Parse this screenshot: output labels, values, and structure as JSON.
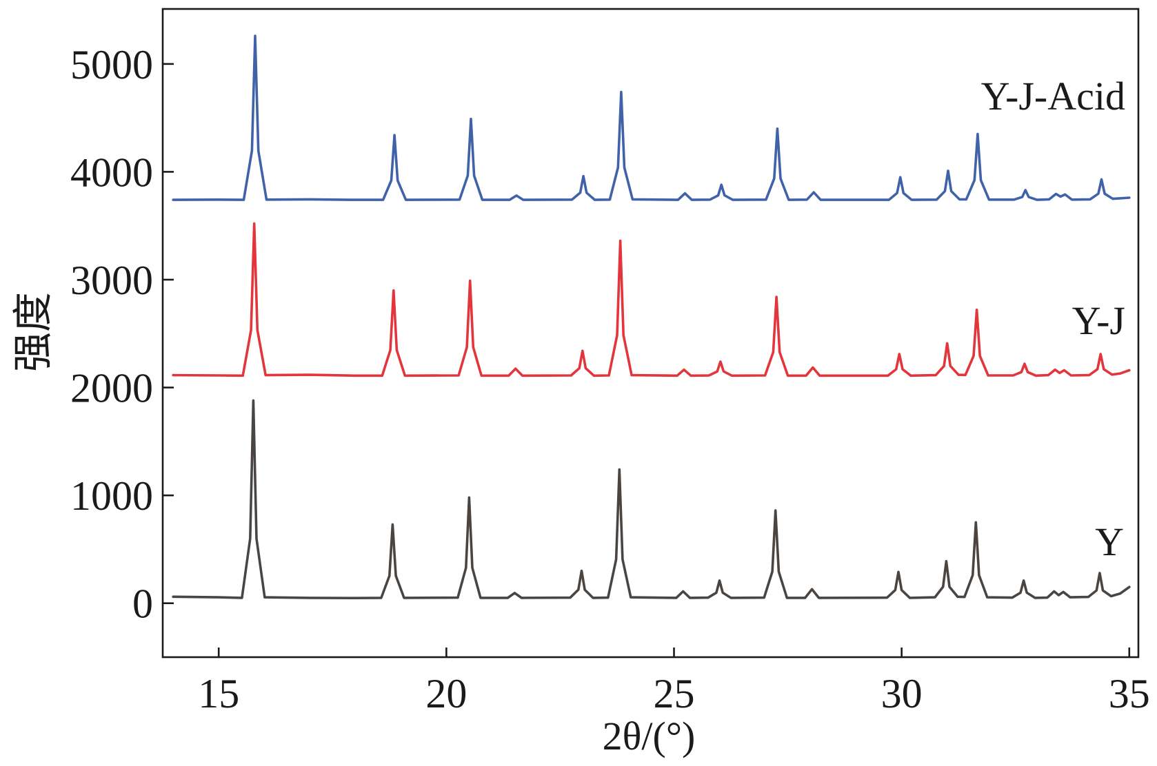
{
  "chart_data": {
    "type": "line",
    "xlabel": "2θ/(°)",
    "ylabel": "强度",
    "xlim": [
      13.77,
      35.2
    ],
    "ylim": [
      -500,
      5510
    ],
    "xticks": [
      15,
      20,
      25,
      30,
      35
    ],
    "yticks": [
      0,
      1000,
      2000,
      3000,
      4000,
      5000
    ],
    "grid": false,
    "legend": "direct labels, right",
    "series": [
      {
        "name": "Y",
        "color": "#4b4542",
        "points": [
          [
            14.0,
            60
          ],
          [
            15.0,
            55
          ],
          [
            15.51,
            50
          ],
          [
            15.69,
            599
          ],
          [
            15.76,
            1880
          ],
          [
            15.83,
            599
          ],
          [
            16.01,
            55
          ],
          [
            17.0,
            50
          ],
          [
            18.0,
            48
          ],
          [
            18.57,
            50
          ],
          [
            18.75,
            254
          ],
          [
            18.82,
            730
          ],
          [
            18.89,
            254
          ],
          [
            19.07,
            50
          ],
          [
            20.25,
            52
          ],
          [
            20.43,
            329
          ],
          [
            20.5,
            980
          ],
          [
            20.57,
            329
          ],
          [
            20.75,
            50
          ],
          [
            21.35,
            50
          ],
          [
            21.5,
            95
          ],
          [
            21.65,
            50
          ],
          [
            22.72,
            52
          ],
          [
            22.9,
            125
          ],
          [
            22.97,
            300
          ],
          [
            23.04,
            125
          ],
          [
            23.22,
            50
          ],
          [
            23.55,
            52
          ],
          [
            23.73,
            407
          ],
          [
            23.8,
            1240
          ],
          [
            23.87,
            407
          ],
          [
            24.05,
            55
          ],
          [
            25.05,
            50
          ],
          [
            25.2,
            110
          ],
          [
            25.35,
            50
          ],
          [
            25.75,
            52
          ],
          [
            25.93,
            98
          ],
          [
            26.0,
            210
          ],
          [
            26.07,
            98
          ],
          [
            26.25,
            50
          ],
          [
            26.98,
            52
          ],
          [
            27.16,
            293
          ],
          [
            27.23,
            860
          ],
          [
            27.3,
            293
          ],
          [
            27.48,
            50
          ],
          [
            27.88,
            50
          ],
          [
            28.03,
            130
          ],
          [
            28.18,
            50
          ],
          [
            29.68,
            52
          ],
          [
            29.86,
            122
          ],
          [
            29.93,
            290
          ],
          [
            30.0,
            122
          ],
          [
            30.18,
            50
          ],
          [
            30.73,
            55
          ],
          [
            30.91,
            152
          ],
          [
            30.98,
            390
          ],
          [
            31.05,
            152
          ],
          [
            31.23,
            60
          ],
          [
            31.38,
            58
          ],
          [
            31.56,
            260
          ],
          [
            31.63,
            750
          ],
          [
            31.7,
            260
          ],
          [
            31.88,
            55
          ],
          [
            32.43,
            52
          ],
          [
            32.61,
            98
          ],
          [
            32.68,
            210
          ],
          [
            32.75,
            98
          ],
          [
            32.93,
            50
          ],
          [
            33.2,
            52
          ],
          [
            33.35,
            110
          ],
          [
            33.45,
            75
          ],
          [
            33.55,
            105
          ],
          [
            33.7,
            55
          ],
          [
            34.1,
            58
          ],
          [
            34.28,
            119
          ],
          [
            34.35,
            280
          ],
          [
            34.42,
            119
          ],
          [
            34.6,
            65
          ],
          [
            34.8,
            90
          ],
          [
            35.0,
            150
          ]
        ]
      },
      {
        "name": "Y-J",
        "color": "#e2363c",
        "points": [
          [
            14.0,
            2115
          ],
          [
            15.0,
            2112
          ],
          [
            15.53,
            2110
          ],
          [
            15.71,
            2533
          ],
          [
            15.78,
            3520
          ],
          [
            15.85,
            2533
          ],
          [
            16.03,
            2115
          ],
          [
            17.0,
            2118
          ],
          [
            18.0,
            2110
          ],
          [
            18.59,
            2110
          ],
          [
            18.77,
            2347
          ],
          [
            18.84,
            2900
          ],
          [
            18.91,
            2347
          ],
          [
            19.09,
            2110
          ],
          [
            20.27,
            2112
          ],
          [
            20.45,
            2374
          ],
          [
            20.52,
            2990
          ],
          [
            20.59,
            2374
          ],
          [
            20.77,
            2110
          ],
          [
            21.37,
            2110
          ],
          [
            21.52,
            2175
          ],
          [
            21.67,
            2110
          ],
          [
            22.74,
            2112
          ],
          [
            22.92,
            2179
          ],
          [
            22.99,
            2340
          ],
          [
            23.06,
            2179
          ],
          [
            23.24,
            2110
          ],
          [
            23.57,
            2112
          ],
          [
            23.75,
            2485
          ],
          [
            23.82,
            3360
          ],
          [
            23.89,
            2485
          ],
          [
            24.07,
            2115
          ],
          [
            25.07,
            2110
          ],
          [
            25.22,
            2165
          ],
          [
            25.37,
            2110
          ],
          [
            25.77,
            2112
          ],
          [
            25.95,
            2149
          ],
          [
            26.02,
            2240
          ],
          [
            26.09,
            2149
          ],
          [
            26.27,
            2110
          ],
          [
            27.0,
            2112
          ],
          [
            27.18,
            2329
          ],
          [
            27.25,
            2840
          ],
          [
            27.32,
            2329
          ],
          [
            27.5,
            2110
          ],
          [
            27.9,
            2110
          ],
          [
            28.05,
            2185
          ],
          [
            28.2,
            2110
          ],
          [
            29.7,
            2110
          ],
          [
            29.88,
            2170
          ],
          [
            29.95,
            2310
          ],
          [
            30.02,
            2170
          ],
          [
            30.2,
            2110
          ],
          [
            30.75,
            2115
          ],
          [
            30.93,
            2200
          ],
          [
            31.0,
            2410
          ],
          [
            31.07,
            2200
          ],
          [
            31.25,
            2118
          ],
          [
            31.4,
            2116
          ],
          [
            31.58,
            2293
          ],
          [
            31.65,
            2720
          ],
          [
            31.72,
            2293
          ],
          [
            31.9,
            2112
          ],
          [
            32.45,
            2112
          ],
          [
            32.63,
            2143
          ],
          [
            32.7,
            2220
          ],
          [
            32.77,
            2143
          ],
          [
            32.95,
            2110
          ],
          [
            33.22,
            2115
          ],
          [
            33.37,
            2165
          ],
          [
            33.47,
            2135
          ],
          [
            33.57,
            2160
          ],
          [
            33.72,
            2112
          ],
          [
            34.12,
            2115
          ],
          [
            34.3,
            2170
          ],
          [
            34.37,
            2310
          ],
          [
            34.44,
            2170
          ],
          [
            34.62,
            2120
          ],
          [
            34.8,
            2130
          ],
          [
            35.0,
            2160
          ]
        ]
      },
      {
        "name": "Y-J-Acid",
        "color": "#3f62a8",
        "points": [
          [
            14.0,
            3740
          ],
          [
            15.0,
            3742
          ],
          [
            15.55,
            3740
          ],
          [
            15.73,
            4196
          ],
          [
            15.8,
            5260
          ],
          [
            15.87,
            4196
          ],
          [
            16.05,
            3742
          ],
          [
            17.0,
            3745
          ],
          [
            18.0,
            3740
          ],
          [
            18.61,
            3740
          ],
          [
            18.79,
            3920
          ],
          [
            18.86,
            4340
          ],
          [
            18.93,
            3920
          ],
          [
            19.11,
            3740
          ],
          [
            20.29,
            3742
          ],
          [
            20.47,
            3965
          ],
          [
            20.54,
            4490
          ],
          [
            20.61,
            3965
          ],
          [
            20.79,
            3740
          ],
          [
            21.39,
            3740
          ],
          [
            21.54,
            3780
          ],
          [
            21.69,
            3740
          ],
          [
            22.76,
            3742
          ],
          [
            22.94,
            3806
          ],
          [
            23.01,
            3960
          ],
          [
            23.08,
            3806
          ],
          [
            23.26,
            3740
          ],
          [
            23.59,
            3742
          ],
          [
            23.77,
            4040
          ],
          [
            23.84,
            4740
          ],
          [
            23.91,
            4040
          ],
          [
            24.09,
            3745
          ],
          [
            25.09,
            3740
          ],
          [
            25.24,
            3800
          ],
          [
            25.39,
            3740
          ],
          [
            25.79,
            3742
          ],
          [
            25.97,
            3782
          ],
          [
            26.04,
            3880
          ],
          [
            26.11,
            3782
          ],
          [
            26.29,
            3740
          ],
          [
            27.02,
            3742
          ],
          [
            27.2,
            3938
          ],
          [
            27.27,
            4400
          ],
          [
            27.34,
            3938
          ],
          [
            27.52,
            3740
          ],
          [
            27.92,
            3742
          ],
          [
            28.07,
            3810
          ],
          [
            28.22,
            3740
          ],
          [
            29.72,
            3740
          ],
          [
            29.9,
            3803
          ],
          [
            29.97,
            3950
          ],
          [
            30.04,
            3803
          ],
          [
            30.22,
            3740
          ],
          [
            30.77,
            3742
          ],
          [
            30.95,
            3821
          ],
          [
            31.02,
            4010
          ],
          [
            31.09,
            3821
          ],
          [
            31.27,
            3745
          ],
          [
            31.42,
            3745
          ],
          [
            31.6,
            3923
          ],
          [
            31.67,
            4350
          ],
          [
            31.74,
            3923
          ],
          [
            31.92,
            3742
          ],
          [
            32.47,
            3742
          ],
          [
            32.65,
            3767
          ],
          [
            32.72,
            3830
          ],
          [
            32.79,
            3767
          ],
          [
            32.97,
            3740
          ],
          [
            33.24,
            3745
          ],
          [
            33.39,
            3795
          ],
          [
            33.49,
            3770
          ],
          [
            33.59,
            3790
          ],
          [
            33.74,
            3742
          ],
          [
            34.14,
            3745
          ],
          [
            34.32,
            3797
          ],
          [
            34.39,
            3930
          ],
          [
            34.46,
            3797
          ],
          [
            34.64,
            3750
          ],
          [
            34.82,
            3755
          ],
          [
            35.0,
            3760
          ]
        ]
      }
    ]
  }
}
